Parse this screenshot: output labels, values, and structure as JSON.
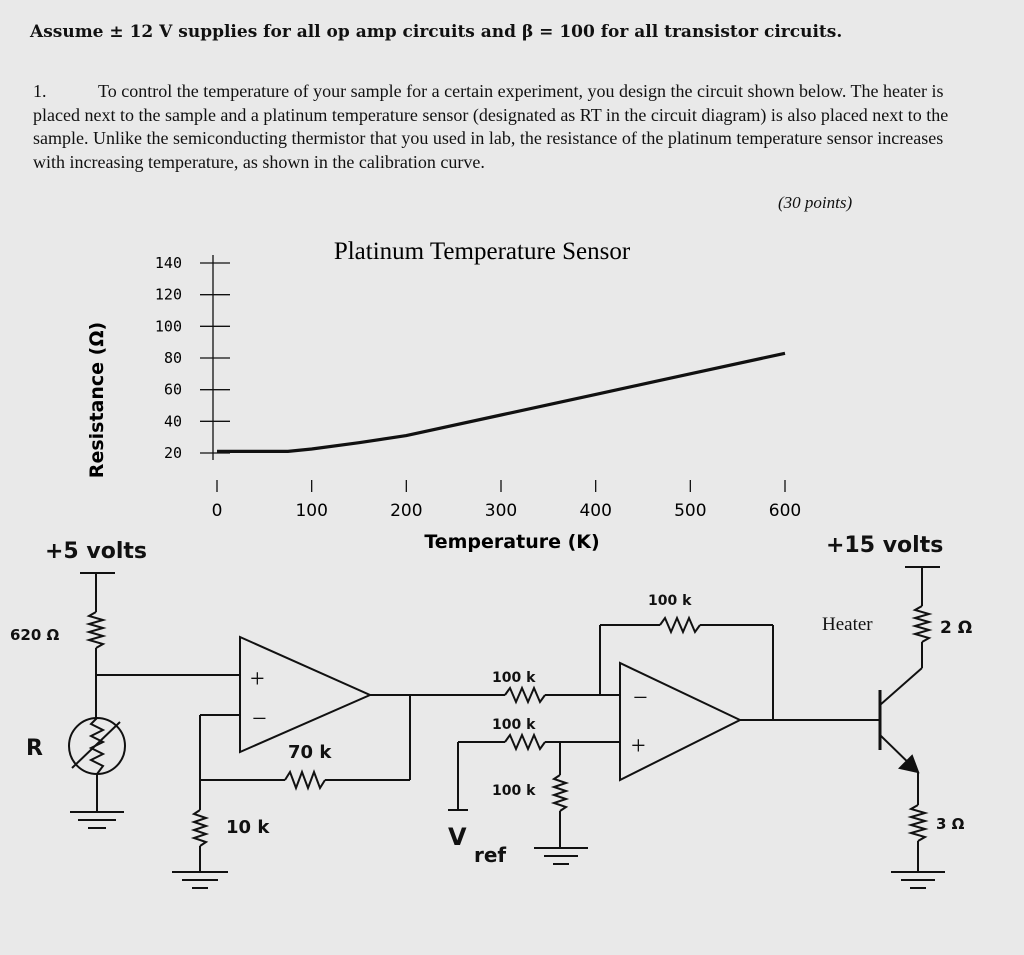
{
  "header": "Assume ± 12 V supplies for all op amp circuits and β = 100 for all transistor circuits.",
  "problem": {
    "number": "1.",
    "text": "To control the temperature of your sample for a certain experiment, you design the circuit shown below. The heater is placed next to the sample and a platinum temperature sensor (designated as RT in the circuit diagram) is also placed next to the sample. Unlike the semiconducting thermistor that you used in lab, the resistance of the platinum temperature sensor increases with increasing temperature, as shown in the calibration curve.",
    "points": "(30 points)"
  },
  "chart_data": {
    "type": "line",
    "title": "Platinum Temperature Sensor",
    "xlabel": "Temperature (K)",
    "ylabel": "Resistance (Ω)",
    "x_ticks": [
      "0",
      "100",
      "200",
      "300",
      "400",
      "500",
      "600"
    ],
    "y_ticks": [
      "140",
      "120",
      "100",
      "80",
      "60",
      "40",
      "20"
    ],
    "xlim": [
      0,
      600
    ],
    "ylim": [
      20,
      140
    ],
    "series": [
      {
        "x": [
          0,
          75,
          100,
          150,
          200,
          300,
          400,
          500,
          600
        ],
        "y": [
          21,
          21,
          22.5,
          26.5,
          31,
          44,
          57,
          70,
          83
        ]
      }
    ]
  },
  "circuit": {
    "supply_left": "+5 volts",
    "supply_right": "+15 volts",
    "r620": "620 Ω",
    "r_sensor": "R",
    "r70k": "70 k",
    "r10k": "10 k",
    "r100k_a": "100 k",
    "r100k_b": "100 k",
    "r100k_c": "100 k",
    "r100k_fb": "100 k",
    "vref": "V",
    "vref_sub": "ref",
    "heater": "Heater",
    "r_heater": "2 Ω",
    "r_emitter": "3 Ω",
    "opamp_plus": "+",
    "opamp_minus": "−"
  }
}
